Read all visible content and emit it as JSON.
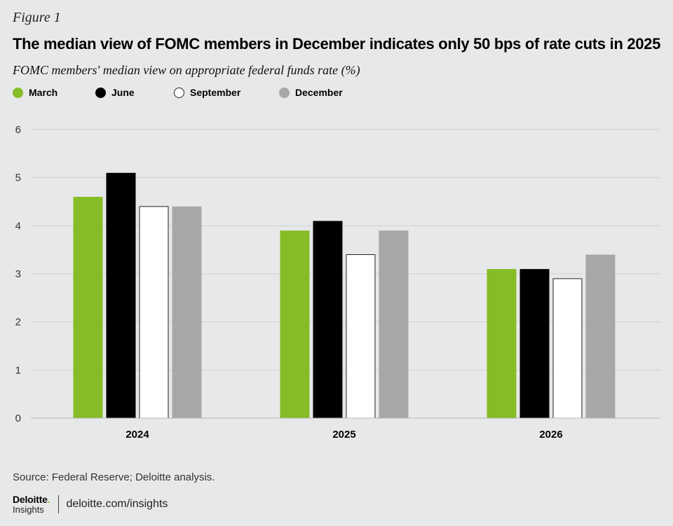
{
  "figure_label": "Figure 1",
  "footer": {
    "source": "Source: Federal Reserve; Deloitte analysis.",
    "brand_name": "Deloitte",
    "brand_dot": ".",
    "brand_sub": "Insights",
    "url": "deloitte.com/insights"
  },
  "colors": {
    "background": "#e7e8e9",
    "grid": "#cfd0d2",
    "axis": "#b5b6b8"
  },
  "chart_data": {
    "type": "bar",
    "title": "The median view of FOMC members in December indicates only 50 bps of rate cuts in 2025",
    "subtitle": "FOMC members' median view on appropriate federal funds rate (%)",
    "xlabel": "",
    "ylabel": "",
    "ylim": [
      0,
      6
    ],
    "yticks": [
      0,
      1,
      2,
      3,
      4,
      5,
      6
    ],
    "grid": true,
    "legend_position": "top-left",
    "categories": [
      "2024",
      "2025",
      "2026"
    ],
    "series": [
      {
        "name": "March",
        "values": [
          4.6,
          3.9,
          3.1
        ],
        "color": "#86bc25",
        "border": "none"
      },
      {
        "name": "June",
        "values": [
          5.1,
          4.1,
          3.1
        ],
        "color": "#000000",
        "border": "none"
      },
      {
        "name": "September",
        "values": [
          4.4,
          3.4,
          2.9
        ],
        "color": "#ffffff",
        "border": "#222222"
      },
      {
        "name": "December",
        "values": [
          4.4,
          3.9,
          3.4
        ],
        "color": "#a7a8a6",
        "border": "none"
      }
    ]
  }
}
